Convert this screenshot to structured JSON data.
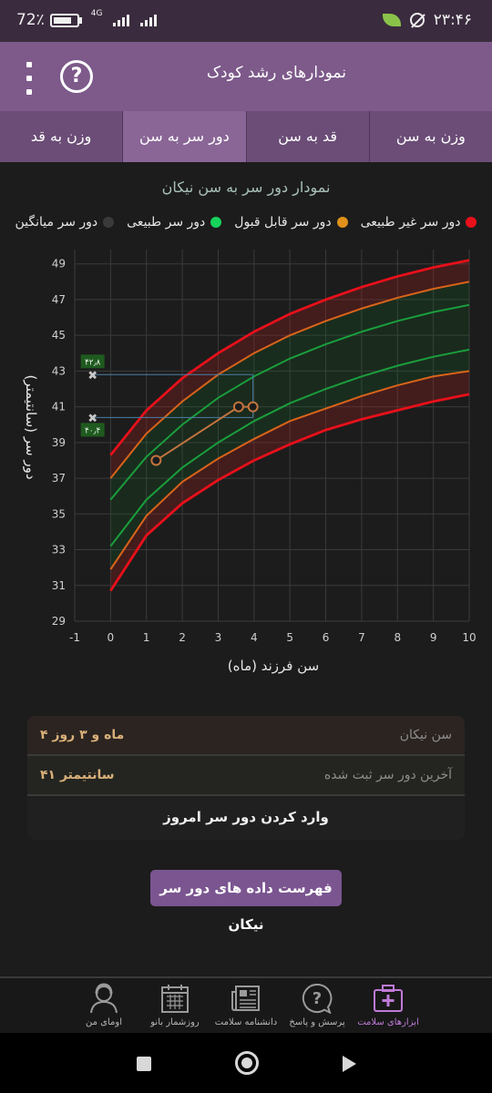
{
  "status": {
    "battery": "72٪",
    "network": "4G",
    "time": "۲۳:۴۶"
  },
  "header": {
    "title": "نمودارهای رشد کودک",
    "help_icon": "help-icon",
    "menu_icon": "menu-icon"
  },
  "tabs": [
    {
      "label": "وزن به سن",
      "active": false
    },
    {
      "label": "قد به سن",
      "active": false
    },
    {
      "label": "دور سر به سن",
      "active": true
    },
    {
      "label": "وزن به قد",
      "active": false
    }
  ],
  "chart": {
    "heading": "نمودار دور سر به سن نیکان",
    "legend": [
      {
        "label": "دور سر غیر طبیعی",
        "color": "#e8101a"
      },
      {
        "label": "دور سر قابل قبول",
        "color": "#e0911a"
      },
      {
        "label": "دور سر طبیعی",
        "color": "#17d45c"
      },
      {
        "label": "دور سر میانگین",
        "color": "#3a3a3a"
      }
    ],
    "ylabel": "دور سر (سانتیمتر)",
    "xlabel": "سن فرزند (ماه)"
  },
  "chart_data": {
    "type": "line",
    "title": "نمودار دور سر به سن نیکان",
    "xlabel": "سن فرزند (ماه)",
    "ylabel": "دور سر (سانتیمتر)",
    "xlim": [
      -1,
      10
    ],
    "ylim": [
      29,
      49.8
    ],
    "x_ticks": [
      -1,
      0,
      1,
      2,
      3,
      4,
      5,
      6,
      7,
      8,
      9,
      10
    ],
    "y_ticks": [
      29,
      31,
      33,
      35,
      37,
      39,
      41,
      43,
      45,
      47,
      49
    ],
    "grid": true,
    "x": [
      0,
      1,
      2,
      3,
      4,
      5,
      6,
      7,
      8,
      9,
      10
    ],
    "series": [
      {
        "name": "دور سر غیر طبیعی",
        "color": "#e8101a",
        "values": [
          38.3,
          40.8,
          42.6,
          44.0,
          45.2,
          46.2,
          47.0,
          47.7,
          48.3,
          48.8,
          49.2
        ]
      },
      {
        "color": "#d9641a",
        "values": [
          37.0,
          39.5,
          41.3,
          42.8,
          44.0,
          45.0,
          45.8,
          46.5,
          47.1,
          47.6,
          48.0
        ]
      },
      {
        "color": "#1a9e3c",
        "values": [
          35.8,
          38.2,
          40.0,
          41.5,
          42.7,
          43.7,
          44.5,
          45.2,
          45.8,
          46.3,
          46.7
        ]
      },
      {
        "color": "#1a9e3c",
        "values": [
          33.2,
          35.8,
          37.6,
          39.0,
          40.2,
          41.2,
          42.0,
          42.7,
          43.3,
          43.8,
          44.2
        ]
      },
      {
        "color": "#d9641a",
        "values": [
          31.9,
          34.9,
          36.8,
          38.1,
          39.2,
          40.2,
          40.9,
          41.6,
          42.2,
          42.7,
          43.0
        ]
      },
      {
        "color": "#e8101a",
        "values": [
          30.7,
          33.8,
          35.6,
          36.9,
          38.0,
          38.9,
          39.7,
          40.3,
          40.8,
          41.3,
          41.7
        ]
      }
    ],
    "measurements": {
      "color": "#c2743e",
      "x": [
        1.27,
        3.57,
        3.97
      ],
      "y": [
        38.0,
        41.0,
        41.0
      ]
    },
    "markers": [
      {
        "label": "۴۲٫۸",
        "y": 42.8,
        "x": -0.5
      },
      {
        "label": "۴۰٫۴",
        "y": 40.4,
        "x": -0.5
      }
    ]
  },
  "info": {
    "rows": [
      {
        "label": "سن نیکان",
        "value": "۴ ماه و ۳ روز"
      },
      {
        "label": "آخرین دور سر ثبت شده",
        "value": "۴۱ سانتیمتر"
      }
    ],
    "action": "وارد کردن دور سر امروز"
  },
  "list_button": "فهرست داده های دور سر نیکان",
  "bottom_nav": [
    {
      "label": "ابزارهای سلامت",
      "icon": "medical-kit-icon",
      "active": true
    },
    {
      "label": "پرسش و پاسخ",
      "icon": "question-bubble-icon",
      "active": false
    },
    {
      "label": "دانشنامه سلامت",
      "icon": "newspaper-icon",
      "active": false
    },
    {
      "label": "روزشمار بانو",
      "icon": "calendar-icon",
      "active": false
    },
    {
      "label": "اومای من",
      "icon": "user-icon",
      "active": false
    }
  ]
}
